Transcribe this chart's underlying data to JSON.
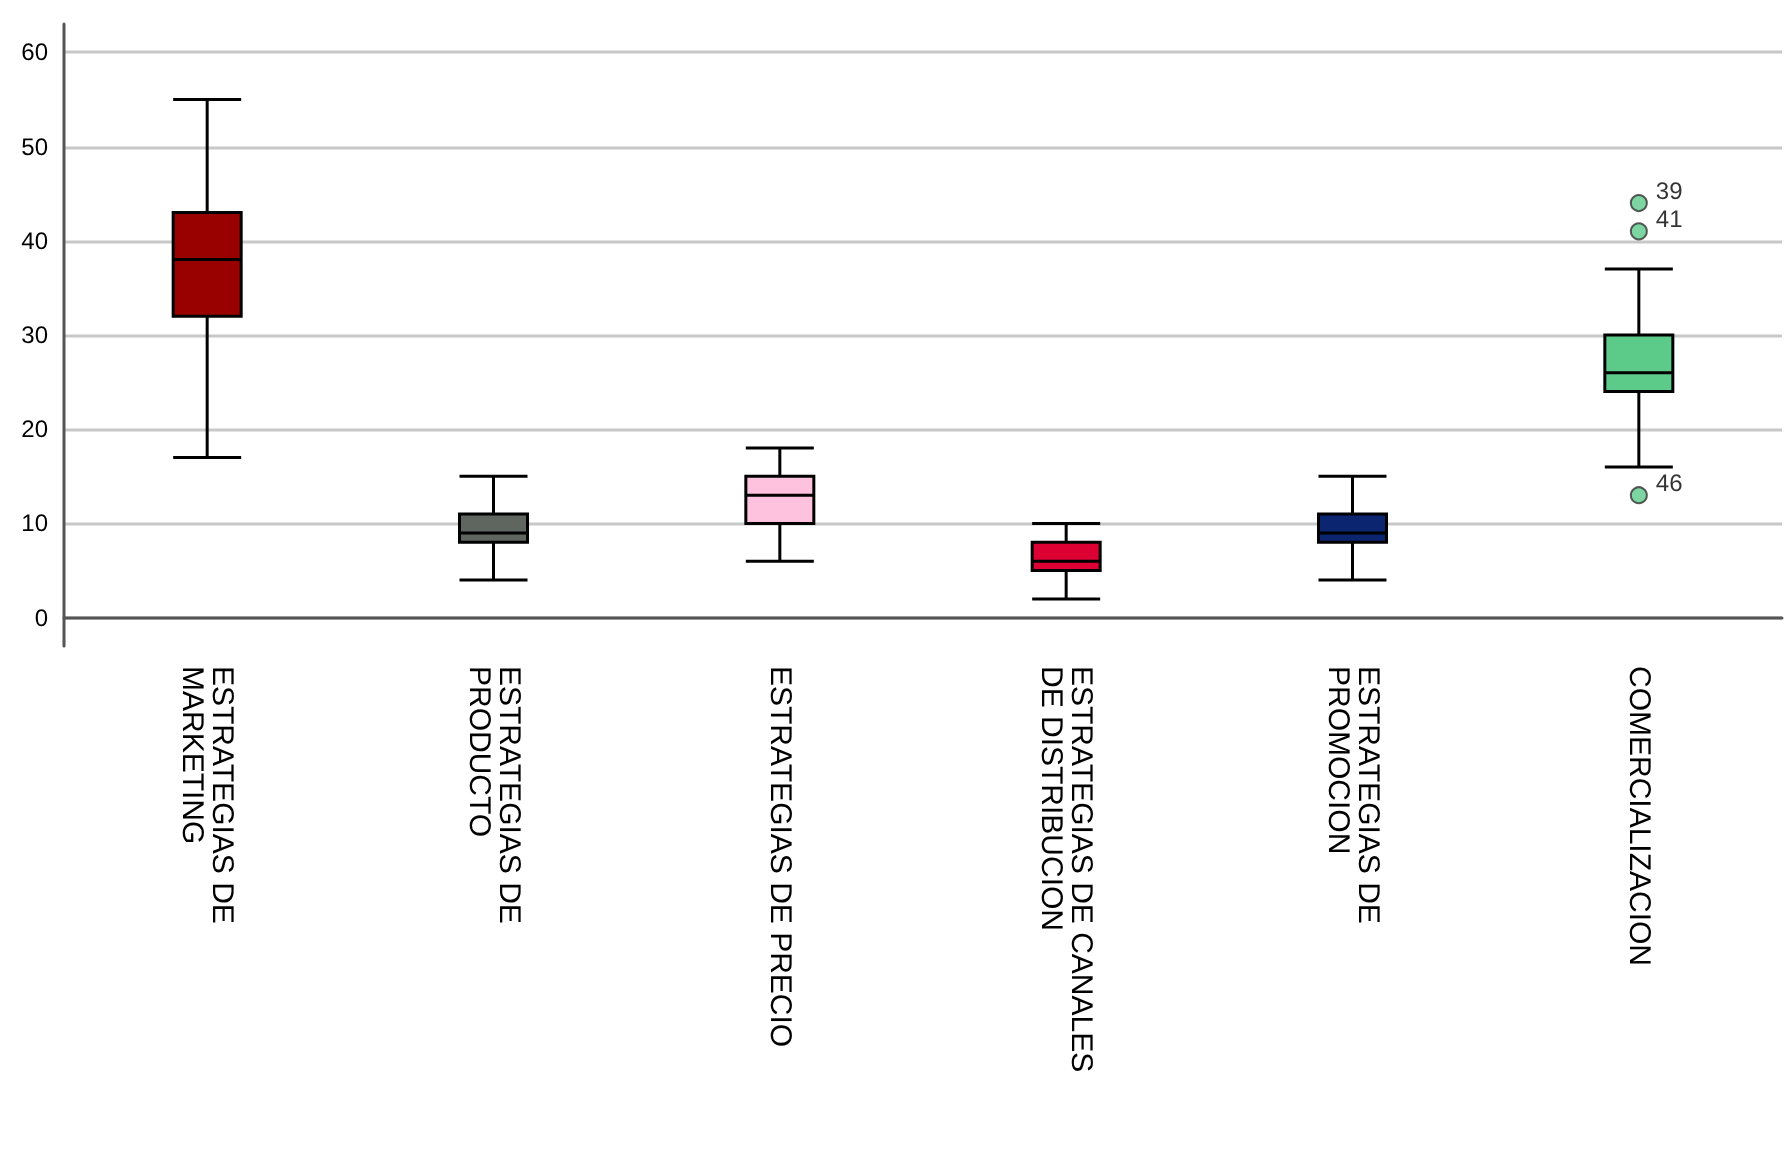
{
  "chart_data": {
    "type": "box",
    "categories": [
      "ESTRATEGIAS DE\nMARKETING",
      "ESTRATEGIAS DE\nPRODUCTO",
      "ESTRATEGIAS DE PRECIO",
      "ESTRATEGIAS DE CANALES\nDE DISTRIBUCION",
      "ESTRATEGIAS DE\nPROMOCION",
      "COMERCIALIZACION"
    ],
    "boxes": [
      {
        "low": 17,
        "q1": 32,
        "median": 38,
        "q3": 43,
        "high": 55
      },
      {
        "low": 4,
        "q1": 8,
        "median": 9,
        "q3": 11,
        "high": 15
      },
      {
        "low": 6,
        "q1": 10,
        "median": 13,
        "q3": 15,
        "high": 18
      },
      {
        "low": 2,
        "q1": 5,
        "median": 6,
        "q3": 8,
        "high": 10
      },
      {
        "low": 4,
        "q1": 8,
        "median": 9,
        "q3": 11,
        "high": 15
      },
      {
        "low": 16,
        "q1": 24,
        "median": 26,
        "q3": 30,
        "high": 37,
        "outliers": [
          44,
          41,
          13
        ]
      }
    ],
    "colors": [
      "#990000",
      "#5f6660",
      "#ffc2de",
      "#dd0033",
      "#0b2570",
      "#5ccb8a"
    ],
    "ylim": [
      -3,
      63
    ],
    "yticks": [
      0,
      10,
      20,
      30,
      40,
      50,
      60
    ],
    "grid": "y",
    "annotations": [
      "39",
      "41",
      "46"
    ]
  }
}
